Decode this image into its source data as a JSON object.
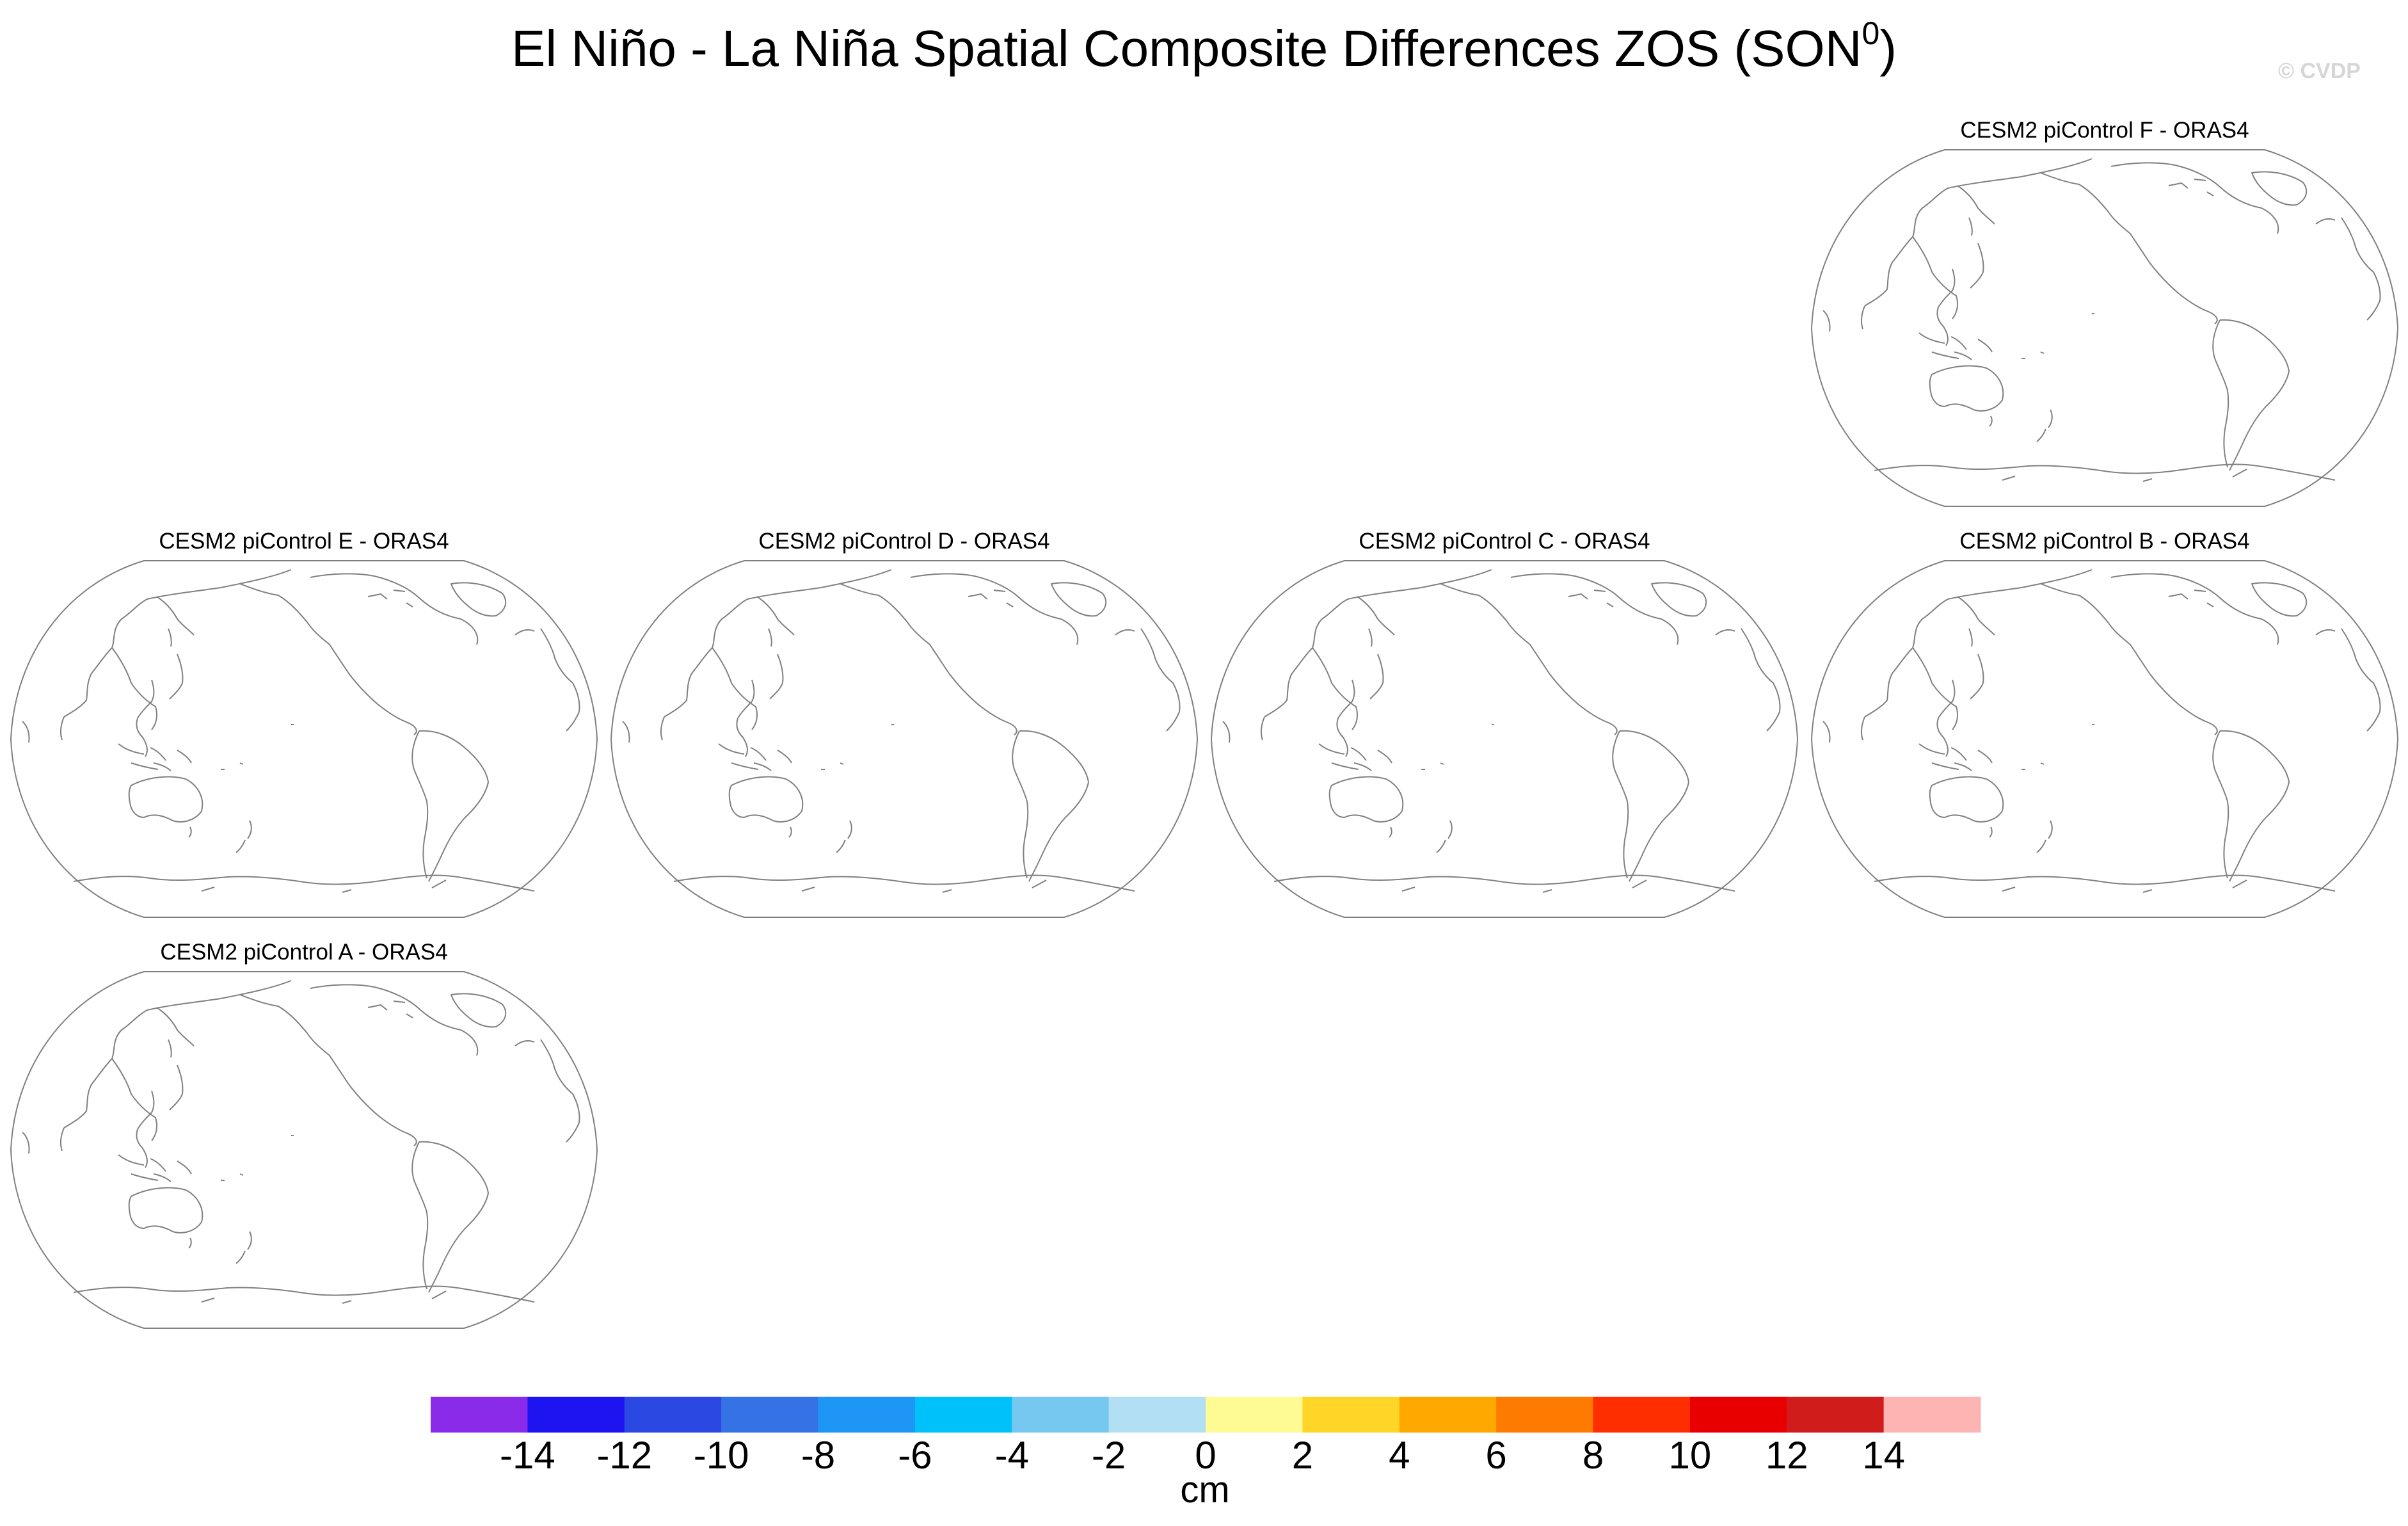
{
  "header": {
    "title_main": "El Niño - La Niña Spatial Composite Differences ZOS (SON",
    "title_sup": "0",
    "title_end": ")",
    "watermark": "© CVDP"
  },
  "panels": [
    {
      "id": "F",
      "title": "CESM2 piControl F - ORAS4"
    },
    {
      "id": "E",
      "title": "CESM2 piControl E - ORAS4"
    },
    {
      "id": "D",
      "title": "CESM2 piControl D - ORAS4"
    },
    {
      "id": "C",
      "title": "CESM2 piControl C - ORAS4"
    },
    {
      "id": "B",
      "title": "CESM2 piControl B - ORAS4"
    },
    {
      "id": "A",
      "title": "CESM2 piControl A - ORAS4"
    }
  ],
  "colorbar": {
    "unit": "cm",
    "labels": [
      "-14",
      "-12",
      "-10",
      "-8",
      "-6",
      "-4",
      "-2",
      "0",
      "2",
      "4",
      "6",
      "8",
      "10",
      "12",
      "14"
    ],
    "colors": [
      "#8a2bea",
      "#1e14f2",
      "#2b48e2",
      "#3572e6",
      "#1e96f6",
      "#00c1fa",
      "#77c8f0",
      "#b2dff4",
      "#fefa94",
      "#ffd528",
      "#ffa800",
      "#ff7a00",
      "#ff2e00",
      "#e80000",
      "#d11c1c",
      "#ffb4b4"
    ]
  }
}
